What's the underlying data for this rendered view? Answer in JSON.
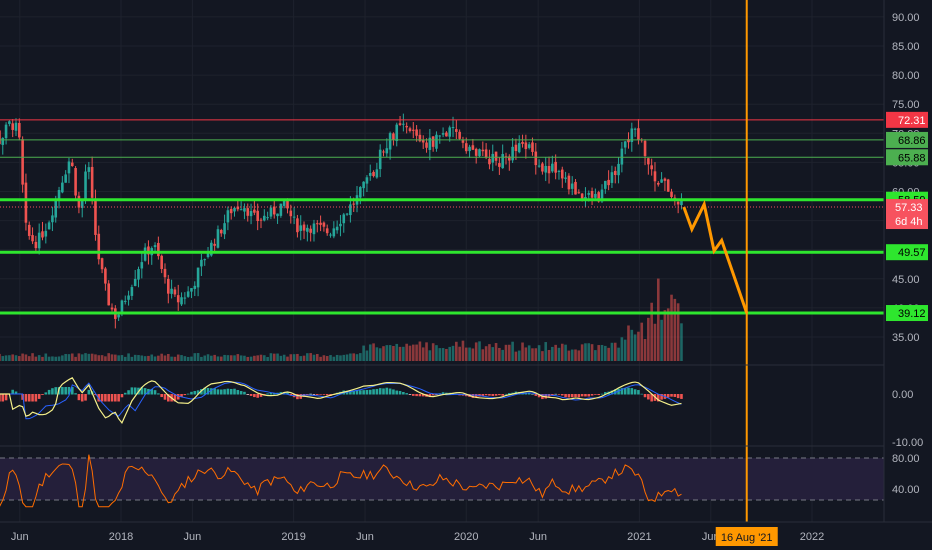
{
  "chart_data": {
    "type": "candlestick",
    "title": "",
    "price_axis": {
      "ylim": [
        30,
        93
      ],
      "ticks": [
        "35.00",
        "40.00",
        "45.00",
        "50.00",
        "55.00",
        "60.00",
        "65.00",
        "70.00",
        "75.00",
        "80.00",
        "85.00",
        "90.00"
      ]
    },
    "x_ticks": [
      "Jun",
      "2018",
      "Jun",
      "2019",
      "Jun",
      "2020",
      "Jun",
      "2021",
      "Jun",
      "2022"
    ],
    "horizontal_levels": [
      {
        "value": 72.31,
        "label": "72.31",
        "color": "#f23645"
      },
      {
        "value": 68.86,
        "label": "68.86",
        "color": "#4caf50"
      },
      {
        "value": 65.88,
        "label": "65.88",
        "color": "#4caf50"
      },
      {
        "value": 58.59,
        "label": "58.59",
        "color": "#2ee62e"
      },
      {
        "value": 49.57,
        "label": "49.57",
        "color": "#2ee62e"
      },
      {
        "value": 39.12,
        "label": "39.12",
        "color": "#2ee62e"
      }
    ],
    "last_price": {
      "value": 57.33,
      "label": "57.33",
      "countdown": "6d 4h",
      "color": "#f7525f"
    },
    "vertical_marker": {
      "date": "2021-08-16",
      "label": "16 Aug '21",
      "color": "#ff9800"
    },
    "projection_path": [
      {
        "date": "2021-04-05",
        "price": 57.33
      },
      {
        "date": "2021-04-22",
        "price": 53.5
      },
      {
        "date": "2021-05-18",
        "price": 57.8
      },
      {
        "date": "2021-06-08",
        "price": 49.8
      },
      {
        "date": "2021-06-24",
        "price": 51.6
      },
      {
        "date": "2021-08-16",
        "price": 39.12
      }
    ],
    "price_path": [
      {
        "date": "2017-03-01",
        "price": 88
      },
      {
        "date": "2017-03-25",
        "price": 80
      },
      {
        "date": "2017-04-20",
        "price": 68
      },
      {
        "date": "2017-05-15",
        "price": 72
      },
      {
        "date": "2017-06-05",
        "price": 70
      },
      {
        "date": "2017-06-15",
        "price": 53
      },
      {
        "date": "2017-07-10",
        "price": 51
      },
      {
        "date": "2017-08-05",
        "price": 55
      },
      {
        "date": "2017-09-01",
        "price": 62
      },
      {
        "date": "2017-09-20",
        "price": 66
      },
      {
        "date": "2017-10-10",
        "price": 55
      },
      {
        "date": "2017-10-25",
        "price": 66
      },
      {
        "date": "2017-11-15",
        "price": 50
      },
      {
        "date": "2017-12-05",
        "price": 42
      },
      {
        "date": "2017-12-25",
        "price": 38
      },
      {
        "date": "2018-01-20",
        "price": 43
      },
      {
        "date": "2018-02-20",
        "price": 49
      },
      {
        "date": "2018-03-15",
        "price": 51
      },
      {
        "date": "2018-04-10",
        "price": 44
      },
      {
        "date": "2018-05-01",
        "price": 41
      },
      {
        "date": "2018-06-01",
        "price": 43
      },
      {
        "date": "2018-07-01",
        "price": 49
      },
      {
        "date": "2018-08-01",
        "price": 53
      },
      {
        "date": "2018-08-25",
        "price": 57
      },
      {
        "date": "2018-09-20",
        "price": 58
      },
      {
        "date": "2018-10-15",
        "price": 55
      },
      {
        "date": "2018-11-15",
        "price": 56
      },
      {
        "date": "2018-12-15",
        "price": 58
      },
      {
        "date": "2019-01-10",
        "price": 54
      },
      {
        "date": "2019-02-15",
        "price": 54
      },
      {
        "date": "2019-03-20",
        "price": 53
      },
      {
        "date": "2019-04-20",
        "price": 56
      },
      {
        "date": "2019-05-20",
        "price": 59
      },
      {
        "date": "2019-06-20",
        "price": 63
      },
      {
        "date": "2019-07-15",
        "price": 68
      },
      {
        "date": "2019-08-15",
        "price": 71
      },
      {
        "date": "2019-09-15",
        "price": 70
      },
      {
        "date": "2019-10-15",
        "price": 68
      },
      {
        "date": "2019-11-15",
        "price": 70
      },
      {
        "date": "2019-12-15",
        "price": 70
      },
      {
        "date": "2020-01-15",
        "price": 67
      },
      {
        "date": "2020-02-15",
        "price": 66
      },
      {
        "date": "2020-03-15",
        "price": 65
      },
      {
        "date": "2020-04-15",
        "price": 67
      },
      {
        "date": "2020-05-15",
        "price": 68
      },
      {
        "date": "2020-06-10",
        "price": 64
      },
      {
        "date": "2020-07-10",
        "price": 64
      },
      {
        "date": "2020-08-10",
        "price": 61
      },
      {
        "date": "2020-09-10",
        "price": 59
      },
      {
        "date": "2020-10-10",
        "price": 59
      },
      {
        "date": "2020-11-10",
        "price": 63
      },
      {
        "date": "2020-12-05",
        "price": 68
      },
      {
        "date": "2020-12-28",
        "price": 71
      },
      {
        "date": "2021-01-20",
        "price": 66
      },
      {
        "date": "2021-02-10",
        "price": 62
      },
      {
        "date": "2021-03-05",
        "price": 61
      },
      {
        "date": "2021-04-01",
        "price": 57.3
      }
    ],
    "macd_pane": {
      "ticks": [
        "0.00",
        "-10.00"
      ]
    },
    "rsi_pane": {
      "ticks": [
        "80.00",
        "40.00"
      ],
      "upper": 80,
      "lower": 30
    }
  }
}
